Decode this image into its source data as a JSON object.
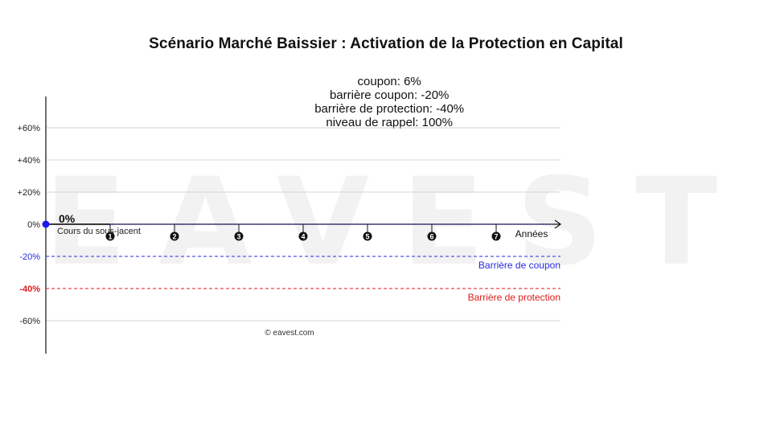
{
  "header": {
    "title": "Scénario Marché Baissier : Activation de la Protection en Capital",
    "params": [
      "coupon: 6%",
      "barrière coupon: -20%",
      "barrière de protection: -40%",
      "niveau de rappel: 100%"
    ]
  },
  "watermark": "EAVEST",
  "copyright": "© eavest.com",
  "chart_data": {
    "type": "line",
    "title": "Scénario Marché Baissier : Activation de la Protection en Capital",
    "ylim": [
      -80,
      80
    ],
    "y_ticks": [
      {
        "value": 60,
        "label": "+60%"
      },
      {
        "value": 40,
        "label": "+40%"
      },
      {
        "value": 20,
        "label": "+20%"
      },
      {
        "value": 0,
        "label": "0%"
      },
      {
        "value": -20,
        "label": "-20%",
        "color": "#2a2ae0"
      },
      {
        "value": -40,
        "label": "-40%",
        "color": "#e01b1b"
      },
      {
        "value": -60,
        "label": "-60%"
      }
    ],
    "xlim": [
      0,
      8
    ],
    "x_ticks": [
      "1",
      "2",
      "3",
      "4",
      "5",
      "6",
      "7"
    ],
    "xlabel": "Années",
    "series": [
      {
        "name": "Cours du sous-jacent",
        "x": [
          0
        ],
        "y": [
          0
        ],
        "color": "#1a1aee",
        "start_label": "0%"
      }
    ],
    "lines": [
      {
        "label": "Barrière de coupon",
        "value": -20,
        "color": "#2a2ae0"
      },
      {
        "label": "Barrière de protection",
        "value": -40,
        "color": "#e01b1b"
      }
    ],
    "grid": true
  }
}
